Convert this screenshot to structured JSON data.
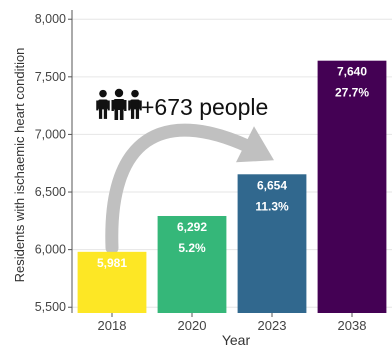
{
  "chart_data": {
    "type": "bar",
    "title": "",
    "xlabel": "Year",
    "ylabel": "Residents with ischaemic heart condition",
    "ylim": [
      5450,
      8080
    ],
    "yticks": [
      5500,
      6000,
      6500,
      7000,
      7500,
      8000
    ],
    "ytick_labels": [
      "5,500",
      "6,000",
      "6,500",
      "7,000",
      "7,500",
      "8,000"
    ],
    "grid": true,
    "categories": [
      "2018",
      "2020",
      "2023",
      "2038"
    ],
    "values": [
      5981,
      6292,
      6654,
      7640
    ],
    "value_labels": [
      "5,981",
      "6,292",
      "6,654",
      "7,640"
    ],
    "percent_labels": [
      "",
      "5.2%",
      "11.3%",
      "27.7%"
    ],
    "colors": [
      "#fde725",
      "#35b779",
      "#31688e",
      "#440154"
    ],
    "annotation": {
      "text": "+673 people",
      "icon": "people-group-icon",
      "arrow_from": "2018",
      "arrow_to": "2023",
      "arrow_color": "#c0c0c0"
    }
  }
}
